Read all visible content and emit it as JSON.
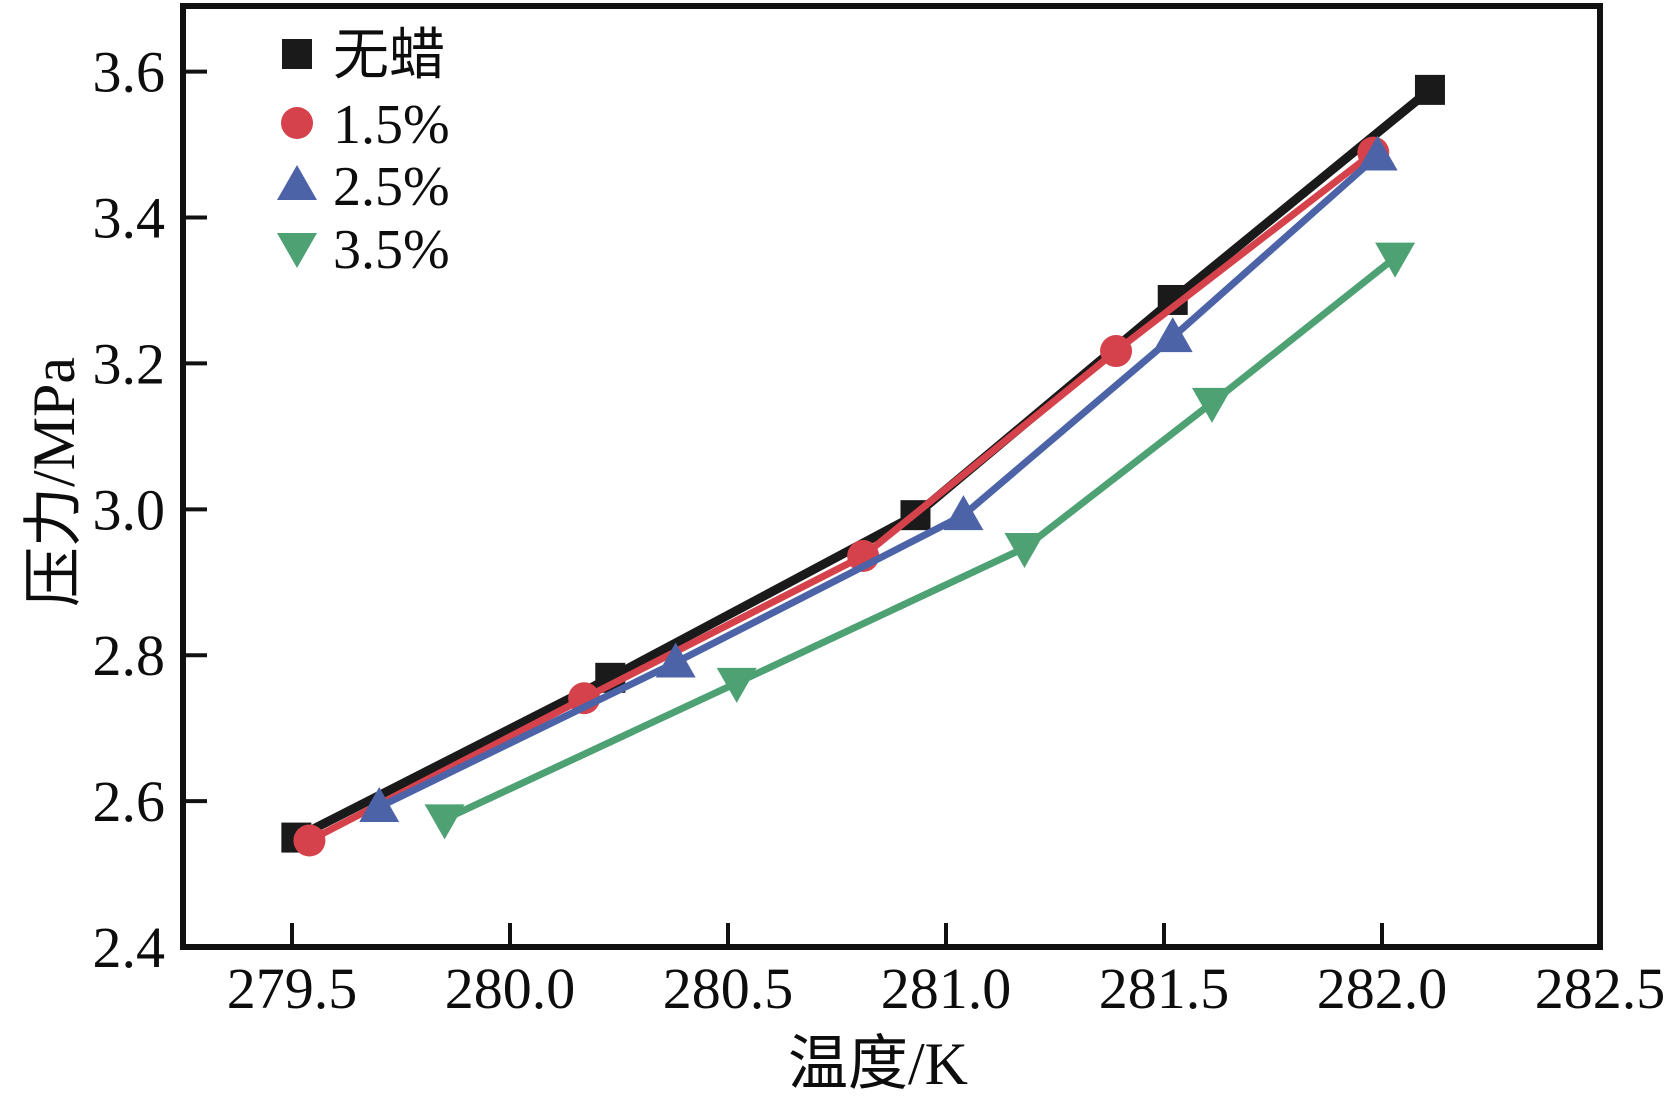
{
  "figure": {
    "background": "#ffffff",
    "frame_color": "#111111",
    "text_color": "#0d0d0d"
  },
  "chart_data": {
    "type": "line",
    "title": "",
    "xlabel": "温度/K",
    "ylabel": "压力/MPa",
    "xlim": [
      279.25,
      282.5
    ],
    "ylim": [
      2.4,
      3.69
    ],
    "grid": false,
    "legend_position": "top-left-inside",
    "x_ticks": [
      279.5,
      280.0,
      280.5,
      281.0,
      281.5,
      282.0,
      282.5
    ],
    "x_tick_labels": [
      "279.5",
      "280.0",
      "280.5",
      "281.0",
      "281.5",
      "282.0",
      "282.5"
    ],
    "y_ticks": [
      2.4,
      2.6,
      2.8,
      3.0,
      3.2,
      3.4,
      3.6
    ],
    "y_tick_labels": [
      "2.4",
      "2.6",
      "2.8",
      "3.0",
      "3.2",
      "3.4",
      "3.6"
    ],
    "series": [
      {
        "name": "无蜡",
        "color": "#1a1a1a",
        "marker": "square",
        "line_width": 9,
        "points": [
          [
            279.51,
            2.55
          ],
          [
            280.23,
            2.769
          ],
          [
            280.93,
            2.992
          ],
          [
            281.52,
            3.287
          ],
          [
            282.11,
            3.575
          ]
        ]
      },
      {
        "name": "1.5%",
        "color": "#d5424b",
        "marker": "circle",
        "line_width": 7,
        "points": [
          [
            279.54,
            2.546
          ],
          [
            280.17,
            2.741
          ],
          [
            280.81,
            2.936
          ],
          [
            281.39,
            3.217
          ],
          [
            281.98,
            3.489
          ]
        ]
      },
      {
        "name": "2.5%",
        "color": "#4c63a8",
        "marker": "triangle-up",
        "line_width": 7,
        "points": [
          [
            279.7,
            2.592
          ],
          [
            280.38,
            2.79
          ],
          [
            281.04,
            2.992
          ],
          [
            281.52,
            3.236
          ],
          [
            281.99,
            3.485
          ]
        ]
      },
      {
        "name": "3.5%",
        "color": "#4da173",
        "marker": "triangle-down",
        "line_width": 7,
        "points": [
          [
            279.85,
            2.575
          ],
          [
            280.52,
            2.762
          ],
          [
            281.18,
            2.947
          ],
          [
            281.61,
            3.146
          ],
          [
            282.03,
            3.345
          ]
        ]
      }
    ]
  }
}
